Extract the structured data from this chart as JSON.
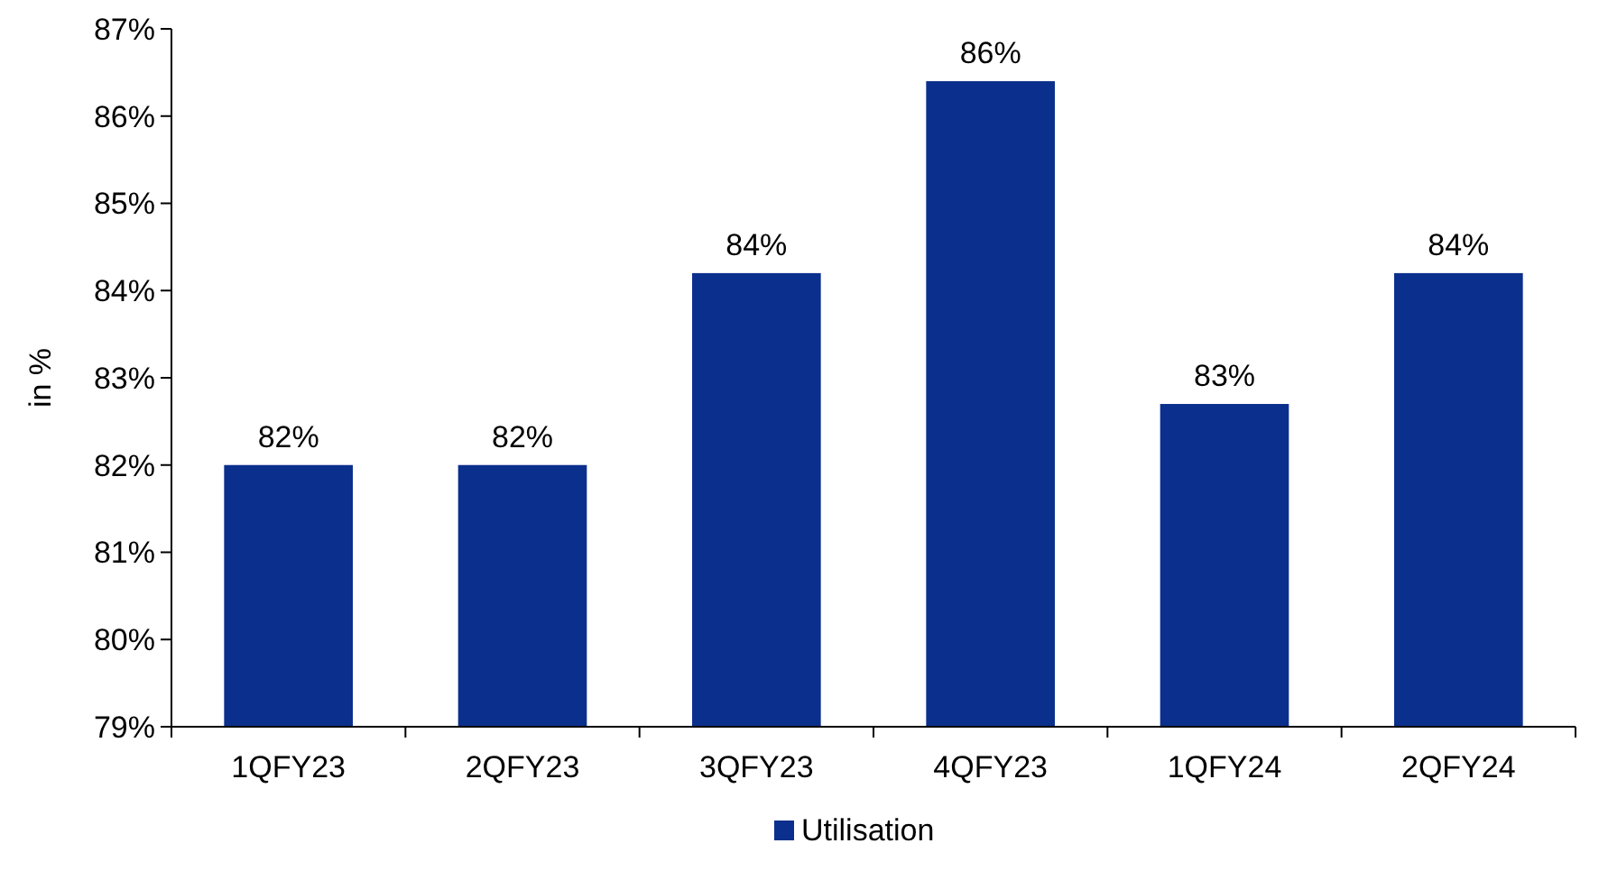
{
  "chart_data": {
    "type": "bar",
    "ylabel": "in %",
    "categories": [
      "1QFY23",
      "2QFY23",
      "3QFY23",
      "4QFY23",
      "1QFY24",
      "2QFY24"
    ],
    "series": [
      {
        "name": "Utilisation",
        "color": "#0b2f8c",
        "values": [
          82.0,
          82.0,
          84.2,
          86.4,
          82.7,
          84.2
        ],
        "value_labels": [
          "82%",
          "82%",
          "84%",
          "86%",
          "83%",
          "84%"
        ]
      }
    ],
    "ylim": [
      79,
      87
    ],
    "yticks": [
      {
        "value": 79,
        "label": "79%"
      },
      {
        "value": 80,
        "label": "80%"
      },
      {
        "value": 81,
        "label": "81%"
      },
      {
        "value": 82,
        "label": "82%"
      },
      {
        "value": 83,
        "label": "83%"
      },
      {
        "value": 84,
        "label": "84%"
      },
      {
        "value": 85,
        "label": "85%"
      },
      {
        "value": 86,
        "label": "86%"
      },
      {
        "value": 87,
        "label": "87%"
      }
    ],
    "grid": false,
    "legend": "bottom"
  }
}
